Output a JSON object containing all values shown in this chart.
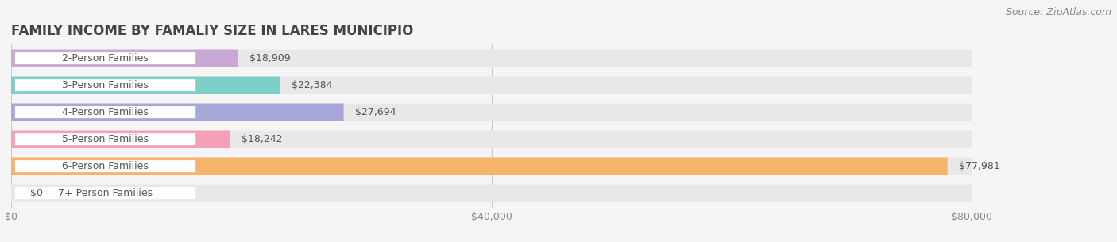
{
  "title": "FAMILY INCOME BY FAMALIY SIZE IN LARES MUNICIPIO",
  "source": "Source: ZipAtlas.com",
  "categories": [
    "2-Person Families",
    "3-Person Families",
    "4-Person Families",
    "5-Person Families",
    "6-Person Families",
    "7+ Person Families"
  ],
  "values": [
    18909,
    22384,
    27694,
    18242,
    77981,
    0
  ],
  "bar_colors": [
    "#c9a8d4",
    "#7ececa",
    "#a8a8d8",
    "#f4a0b8",
    "#f5b36b",
    "#f0b8b8"
  ],
  "value_labels": [
    "$18,909",
    "$22,384",
    "$27,694",
    "$18,242",
    "$77,981",
    "$0"
  ],
  "xlim": [
    0,
    80000
  ],
  "xticks": [
    0,
    40000,
    80000
  ],
  "xtick_labels": [
    "$0",
    "$40,000",
    "$80,000"
  ],
  "background_color": "#f5f5f5",
  "bar_background_color": "#e8e8e8",
  "title_fontsize": 12,
  "source_fontsize": 9,
  "label_fontsize": 9,
  "value_fontsize": 9,
  "tick_fontsize": 9
}
